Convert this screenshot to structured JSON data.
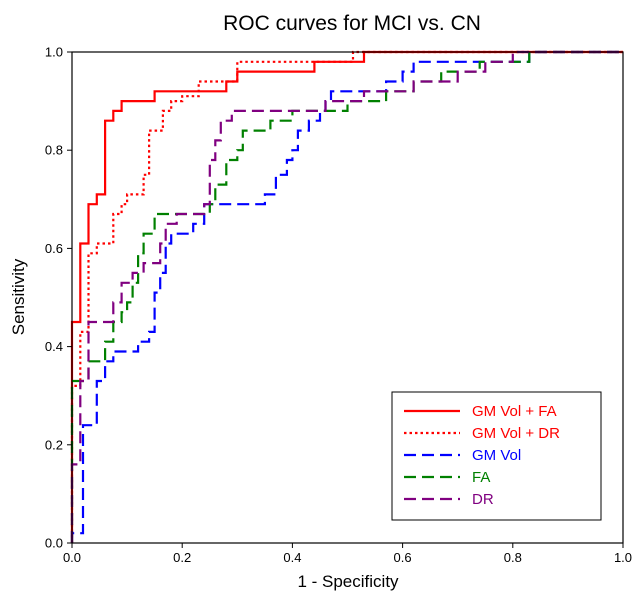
{
  "chart_data": {
    "type": "line",
    "title": "ROC curves for MCI vs. CN",
    "xlabel": "1 - Specificity",
    "ylabel": "Sensitivity",
    "xlim": [
      0,
      1
    ],
    "ylim": [
      0,
      1
    ],
    "x_ticks": [
      "0.0",
      "0.2",
      "0.4",
      "0.6",
      "0.8",
      "1.0"
    ],
    "y_ticks": [
      "0.0",
      "0.2",
      "0.4",
      "0.6",
      "0.8",
      "1.0"
    ],
    "legend_position": "bottom-right",
    "grid": false,
    "series": [
      {
        "name": "GM Vol + FA",
        "color": "#ff0000",
        "dash": "solid",
        "points": [
          [
            0,
            0
          ],
          [
            0,
            0.45
          ],
          [
            0.015,
            0.45
          ],
          [
            0.015,
            0.61
          ],
          [
            0.03,
            0.61
          ],
          [
            0.03,
            0.69
          ],
          [
            0.045,
            0.69
          ],
          [
            0.045,
            0.71
          ],
          [
            0.06,
            0.71
          ],
          [
            0.06,
            0.86
          ],
          [
            0.075,
            0.86
          ],
          [
            0.075,
            0.88
          ],
          [
            0.09,
            0.88
          ],
          [
            0.09,
            0.9
          ],
          [
            0.15,
            0.9
          ],
          [
            0.15,
            0.92
          ],
          [
            0.28,
            0.92
          ],
          [
            0.28,
            0.94
          ],
          [
            0.3,
            0.94
          ],
          [
            0.3,
            0.96
          ],
          [
            0.44,
            0.96
          ],
          [
            0.44,
            0.98
          ],
          [
            0.53,
            0.98
          ],
          [
            0.53,
            1.0
          ],
          [
            1.0,
            1.0
          ]
        ]
      },
      {
        "name": "GM Vol + DR",
        "color": "#ff0000",
        "dash": "dotted",
        "points": [
          [
            0,
            0
          ],
          [
            0,
            0.32
          ],
          [
            0.015,
            0.32
          ],
          [
            0.015,
            0.43
          ],
          [
            0.03,
            0.43
          ],
          [
            0.03,
            0.59
          ],
          [
            0.045,
            0.59
          ],
          [
            0.045,
            0.61
          ],
          [
            0.075,
            0.61
          ],
          [
            0.075,
            0.67
          ],
          [
            0.09,
            0.67
          ],
          [
            0.09,
            0.69
          ],
          [
            0.1,
            0.69
          ],
          [
            0.1,
            0.71
          ],
          [
            0.13,
            0.71
          ],
          [
            0.13,
            0.75
          ],
          [
            0.14,
            0.75
          ],
          [
            0.14,
            0.84
          ],
          [
            0.165,
            0.84
          ],
          [
            0.165,
            0.88
          ],
          [
            0.18,
            0.88
          ],
          [
            0.18,
            0.9
          ],
          [
            0.2,
            0.9
          ],
          [
            0.2,
            0.91
          ],
          [
            0.23,
            0.91
          ],
          [
            0.23,
            0.94
          ],
          [
            0.3,
            0.94
          ],
          [
            0.3,
            0.98
          ],
          [
            0.51,
            0.98
          ],
          [
            0.51,
            1.0
          ],
          [
            1.0,
            1.0
          ]
        ]
      },
      {
        "name": "GM Vol",
        "color": "#0000ff",
        "dash": "dashed",
        "points": [
          [
            0,
            0
          ],
          [
            0,
            0.02
          ],
          [
            0.02,
            0.02
          ],
          [
            0.02,
            0.24
          ],
          [
            0.045,
            0.24
          ],
          [
            0.045,
            0.33
          ],
          [
            0.06,
            0.33
          ],
          [
            0.06,
            0.37
          ],
          [
            0.075,
            0.37
          ],
          [
            0.075,
            0.39
          ],
          [
            0.12,
            0.39
          ],
          [
            0.12,
            0.41
          ],
          [
            0.14,
            0.41
          ],
          [
            0.14,
            0.43
          ],
          [
            0.15,
            0.43
          ],
          [
            0.15,
            0.51
          ],
          [
            0.16,
            0.51
          ],
          [
            0.16,
            0.55
          ],
          [
            0.17,
            0.55
          ],
          [
            0.17,
            0.61
          ],
          [
            0.18,
            0.61
          ],
          [
            0.18,
            0.63
          ],
          [
            0.22,
            0.63
          ],
          [
            0.22,
            0.65
          ],
          [
            0.24,
            0.65
          ],
          [
            0.24,
            0.69
          ],
          [
            0.35,
            0.69
          ],
          [
            0.35,
            0.71
          ],
          [
            0.37,
            0.71
          ],
          [
            0.37,
            0.75
          ],
          [
            0.39,
            0.75
          ],
          [
            0.39,
            0.78
          ],
          [
            0.4,
            0.78
          ],
          [
            0.4,
            0.8
          ],
          [
            0.41,
            0.8
          ],
          [
            0.41,
            0.84
          ],
          [
            0.43,
            0.84
          ],
          [
            0.43,
            0.86
          ],
          [
            0.45,
            0.86
          ],
          [
            0.45,
            0.88
          ],
          [
            0.46,
            0.88
          ],
          [
            0.46,
            0.9
          ],
          [
            0.47,
            0.9
          ],
          [
            0.47,
            0.92
          ],
          [
            0.57,
            0.92
          ],
          [
            0.57,
            0.94
          ],
          [
            0.6,
            0.94
          ],
          [
            0.6,
            0.96
          ],
          [
            0.62,
            0.96
          ],
          [
            0.62,
            0.98
          ],
          [
            0.83,
            0.98
          ],
          [
            0.83,
            1.0
          ],
          [
            1.0,
            1.0
          ]
        ]
      },
      {
        "name": "FA",
        "color": "#008000",
        "dash": "dashed",
        "points": [
          [
            0,
            0
          ],
          [
            0,
            0.33
          ],
          [
            0.03,
            0.33
          ],
          [
            0.03,
            0.37
          ],
          [
            0.06,
            0.37
          ],
          [
            0.06,
            0.41
          ],
          [
            0.075,
            0.41
          ],
          [
            0.075,
            0.45
          ],
          [
            0.09,
            0.45
          ],
          [
            0.09,
            0.47
          ],
          [
            0.1,
            0.47
          ],
          [
            0.1,
            0.49
          ],
          [
            0.11,
            0.49
          ],
          [
            0.11,
            0.53
          ],
          [
            0.12,
            0.53
          ],
          [
            0.12,
            0.59
          ],
          [
            0.13,
            0.59
          ],
          [
            0.13,
            0.63
          ],
          [
            0.15,
            0.63
          ],
          [
            0.15,
            0.67
          ],
          [
            0.25,
            0.67
          ],
          [
            0.25,
            0.69
          ],
          [
            0.26,
            0.69
          ],
          [
            0.26,
            0.73
          ],
          [
            0.28,
            0.73
          ],
          [
            0.28,
            0.78
          ],
          [
            0.3,
            0.78
          ],
          [
            0.3,
            0.8
          ],
          [
            0.31,
            0.8
          ],
          [
            0.31,
            0.84
          ],
          [
            0.36,
            0.84
          ],
          [
            0.36,
            0.86
          ],
          [
            0.4,
            0.86
          ],
          [
            0.4,
            0.88
          ],
          [
            0.5,
            0.88
          ],
          [
            0.5,
            0.9
          ],
          [
            0.57,
            0.9
          ],
          [
            0.57,
            0.92
          ],
          [
            0.62,
            0.92
          ],
          [
            0.62,
            0.94
          ],
          [
            0.67,
            0.94
          ],
          [
            0.67,
            0.96
          ],
          [
            0.74,
            0.96
          ],
          [
            0.74,
            0.98
          ],
          [
            0.83,
            0.98
          ],
          [
            0.83,
            1.0
          ],
          [
            1.0,
            1.0
          ]
        ]
      },
      {
        "name": "DR",
        "color": "#800080",
        "dash": "dashed",
        "points": [
          [
            0,
            0
          ],
          [
            0,
            0.16
          ],
          [
            0.015,
            0.16
          ],
          [
            0.015,
            0.33
          ],
          [
            0.03,
            0.33
          ],
          [
            0.03,
            0.45
          ],
          [
            0.075,
            0.45
          ],
          [
            0.075,
            0.49
          ],
          [
            0.09,
            0.49
          ],
          [
            0.09,
            0.53
          ],
          [
            0.11,
            0.53
          ],
          [
            0.11,
            0.55
          ],
          [
            0.13,
            0.55
          ],
          [
            0.13,
            0.57
          ],
          [
            0.16,
            0.57
          ],
          [
            0.16,
            0.61
          ],
          [
            0.17,
            0.61
          ],
          [
            0.17,
            0.65
          ],
          [
            0.19,
            0.65
          ],
          [
            0.19,
            0.67
          ],
          [
            0.24,
            0.67
          ],
          [
            0.24,
            0.69
          ],
          [
            0.25,
            0.69
          ],
          [
            0.25,
            0.78
          ],
          [
            0.26,
            0.78
          ],
          [
            0.26,
            0.82
          ],
          [
            0.27,
            0.82
          ],
          [
            0.27,
            0.86
          ],
          [
            0.29,
            0.86
          ],
          [
            0.29,
            0.88
          ],
          [
            0.46,
            0.88
          ],
          [
            0.46,
            0.9
          ],
          [
            0.53,
            0.9
          ],
          [
            0.53,
            0.92
          ],
          [
            0.62,
            0.92
          ],
          [
            0.62,
            0.94
          ],
          [
            0.7,
            0.94
          ],
          [
            0.7,
            0.96
          ],
          [
            0.75,
            0.96
          ],
          [
            0.75,
            0.98
          ],
          [
            0.8,
            0.98
          ],
          [
            0.8,
            1.0
          ],
          [
            1.0,
            1.0
          ]
        ]
      }
    ]
  }
}
